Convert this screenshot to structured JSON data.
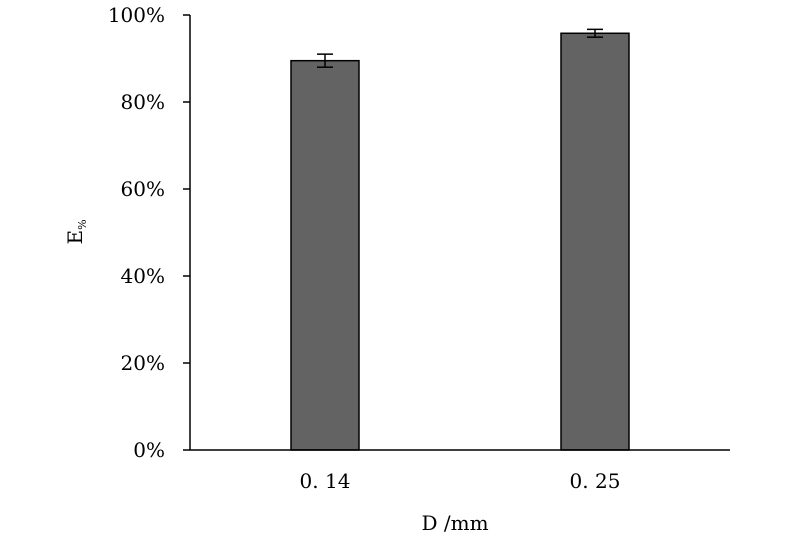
{
  "chart_data": {
    "type": "bar",
    "categories": [
      "0.14",
      "0.25"
    ],
    "values": [
      0.895,
      0.958
    ],
    "error": [
      0.015,
      0.009
    ],
    "ylim": [
      0,
      1
    ],
    "yticks": [
      0,
      0.2,
      0.4,
      0.6,
      0.8,
      1.0
    ],
    "ytick_labels": [
      "0%",
      "20%",
      "40%",
      "60%",
      "80%",
      "100%"
    ],
    "xtick_labels": [
      "0. 14",
      "0. 25"
    ],
    "xlabel": "D /mm",
    "ylabel_main": "E",
    "ylabel_sub": "%",
    "grid": false,
    "bar_color": "#636363"
  }
}
